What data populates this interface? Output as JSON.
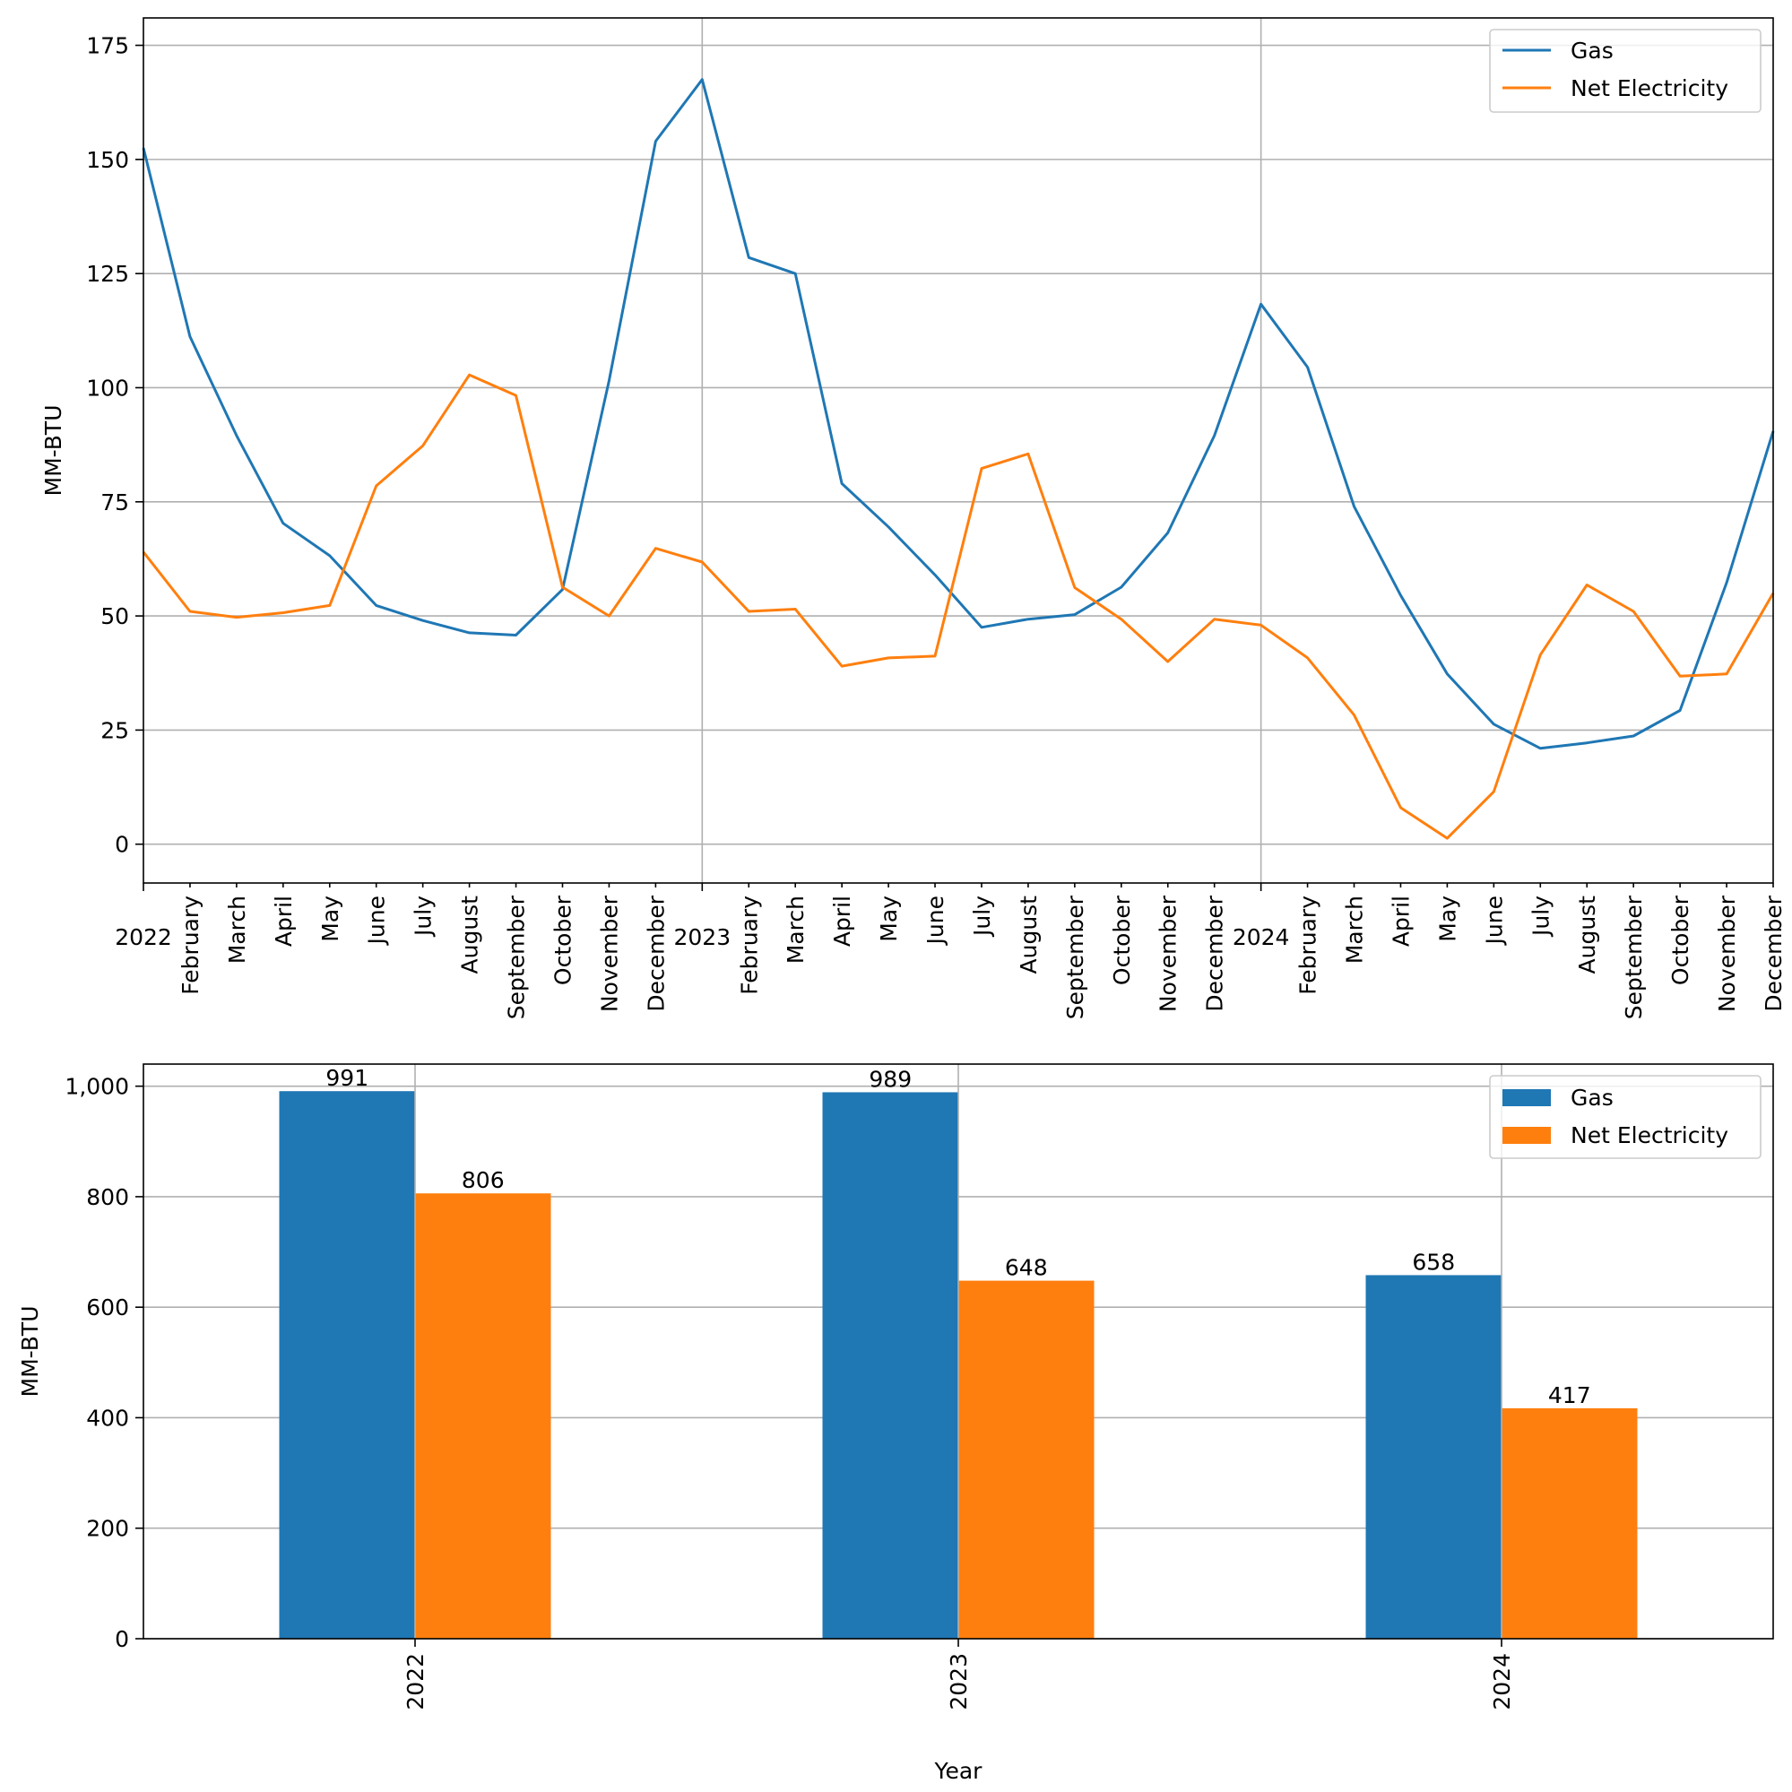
{
  "chart_data": [
    {
      "type": "line",
      "ylabel": "MM-BTU",
      "xlabel": "",
      "ylim": [
        -8.5,
        181
      ],
      "yticks": [
        0,
        25,
        50,
        75,
        100,
        125,
        150,
        175
      ],
      "x_labels": [
        "2022",
        "February",
        "March",
        "April",
        "May",
        "June",
        "July",
        "August",
        "September",
        "October",
        "November",
        "December",
        "2023",
        "February",
        "March",
        "April",
        "May",
        "June",
        "July",
        "August",
        "September",
        "October",
        "November",
        "December",
        "2024",
        "February",
        "March",
        "April",
        "May",
        "June",
        "July",
        "August",
        "September",
        "October",
        "November",
        "December"
      ],
      "grid": true,
      "legend_position": "top-right",
      "series": [
        {
          "name": "Gas",
          "color": "#1f77b4",
          "values": [
            152.5,
            111.2,
            89.5,
            70.3,
            63.2,
            52.3,
            49.0,
            46.3,
            45.8,
            55.8,
            101.5,
            154.0,
            167.5,
            128.5,
            125.0,
            79.0,
            69.5,
            59.0,
            47.5,
            49.3,
            50.3,
            56.3,
            68.2,
            89.5,
            118.3,
            104.5,
            74.0,
            54.5,
            37.3,
            26.3,
            21.0,
            22.2,
            23.7,
            29.3,
            57.3,
            90.5
          ]
        },
        {
          "name": "Net Electricity",
          "color": "#ff7f0e",
          "values": [
            64.0,
            51.0,
            49.7,
            50.7,
            52.3,
            78.5,
            87.3,
            102.8,
            98.3,
            56.3,
            50.0,
            64.8,
            61.8,
            51.0,
            51.5,
            39.0,
            40.8,
            41.2,
            82.3,
            85.5,
            56.2,
            49.3,
            40.0,
            49.3,
            48.0,
            40.8,
            28.3,
            8.0,
            1.3,
            11.5,
            41.5,
            56.8,
            51.0,
            36.8,
            37.3,
            55.0
          ]
        }
      ]
    },
    {
      "type": "bar",
      "xlabel": "Year",
      "ylabel": "MM-BTU",
      "ylim": [
        0,
        1040
      ],
      "yticks": [
        0,
        200,
        400,
        600,
        800,
        1000
      ],
      "ytick_labels": [
        "0",
        "200",
        "400",
        "600",
        "800",
        "1,000"
      ],
      "categories": [
        "2022",
        "2023",
        "2024"
      ],
      "grid": true,
      "legend_position": "top-right",
      "series": [
        {
          "name": "Gas",
          "color": "#1f77b4",
          "values": [
            991,
            989,
            658
          ],
          "labels": [
            "991",
            "989",
            "658"
          ]
        },
        {
          "name": "Net Electricity",
          "color": "#ff7f0e",
          "values": [
            806,
            648,
            417
          ],
          "labels": [
            "806",
            "648",
            "417"
          ]
        }
      ]
    }
  ]
}
